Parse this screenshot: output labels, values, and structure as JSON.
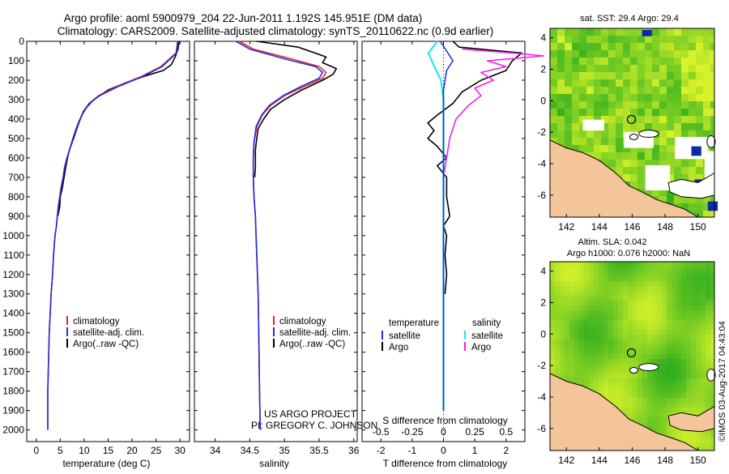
{
  "header": {
    "title_line1": "Argo profile: aoml 5900979_204 22-Jun-2011 1.192S 145.951E (DM data)",
    "title_line2": "Climatology: CARS2009. Satellite-adjusted climatology: synTS_20110622.nc (0.9d earlier)"
  },
  "colors": {
    "climatology": "#e8252a",
    "satellite": "#1f2ee0",
    "argo": "#000000",
    "salinity_satellite": "#22e8f0",
    "salinity_argo": "#f023e6",
    "land": "#f4c49b",
    "no_data": "#ffffff",
    "sst_low": "#2fae1e",
    "sst_high": "#d7f22a",
    "float_marker": "#0a2aa8"
  },
  "annotations": {
    "project": "US ARGO PROJECT",
    "pi": "PI: GREGORY C. JOHNSON",
    "sst_map_title": "sat. SST: 29.4  Argo: 29.4",
    "sla_line1": "Altim. SLA: 0.042",
    "sla_line2": "Argo h1000: 0.076  h2000: NaN",
    "timestamp": "©IMOS 03-Aug-2017 04:43:04"
  },
  "chart_data": [
    {
      "id": "temperature",
      "type": "line",
      "xlabel": "temperature (deg C)",
      "ylabel": "",
      "xlim": [
        -2,
        32
      ],
      "ylim": [
        2060,
        0
      ],
      "x_ticks": [
        0,
        5,
        10,
        15,
        20,
        25,
        30
      ],
      "y_ticks": [
        0,
        100,
        200,
        300,
        400,
        500,
        600,
        700,
        800,
        900,
        1000,
        1100,
        1200,
        1300,
        1400,
        1500,
        1600,
        1700,
        1800,
        1900,
        2000
      ],
      "legend": [
        "climatology",
        "satellite-adj. clim.",
        "Argo(..raw -QC)"
      ],
      "series": [
        {
          "name": "climatology",
          "color": "climatology",
          "x": [
            29.5,
            29.2,
            26,
            22,
            17,
            13,
            11,
            9.8,
            9.2,
            8.6,
            7.8,
            6.9,
            6.4,
            5.9,
            5.6,
            5.2,
            4.9,
            4.6,
            4.4,
            4.2,
            3.9,
            3.6,
            3.4,
            3.1,
            2.9,
            2.7,
            2.6,
            2.4,
            2.4
          ],
          "y": [
            0,
            60,
            130,
            180,
            230,
            280,
            320,
            360,
            400,
            440,
            500,
            560,
            600,
            650,
            700,
            750,
            800,
            850,
            900,
            950,
            1000,
            1100,
            1200,
            1300,
            1400,
            1500,
            1600,
            1800,
            2000
          ]
        },
        {
          "name": "satellite-adj. clim.",
          "color": "satellite",
          "x": [
            29.6,
            29.3,
            26.3,
            22.3,
            17.3,
            13.2,
            11.1,
            9.9,
            9.2,
            8.6,
            7.8,
            6.9,
            6.4,
            5.9,
            5.6,
            5.2,
            4.9,
            4.6,
            4.4,
            4.2,
            3.9,
            3.6,
            3.4,
            3.1,
            2.9,
            2.7,
            2.6,
            2.4,
            2.4
          ],
          "y": [
            0,
            60,
            130,
            180,
            230,
            280,
            320,
            360,
            400,
            440,
            500,
            560,
            600,
            650,
            700,
            750,
            800,
            850,
            900,
            950,
            1000,
            1100,
            1200,
            1300,
            1400,
            1500,
            1600,
            1800,
            2000
          ]
        },
        {
          "name": "Argo(..raw -QC)",
          "color": "argo",
          "x": [
            29.8,
            29.6,
            29,
            28.2,
            26.5,
            22.5,
            19,
            15,
            12,
            10.5,
            9.5,
            8.8,
            8.2,
            7.4,
            6.7,
            6.2,
            5.8,
            5.4,
            5.0,
            4.9,
            4.5
          ],
          "y": [
            0,
            40,
            80,
            120,
            150,
            180,
            210,
            250,
            300,
            340,
            380,
            420,
            460,
            520,
            580,
            640,
            700,
            760,
            800,
            850,
            900
          ]
        }
      ]
    },
    {
      "id": "salinity",
      "type": "line",
      "xlabel": "salinity",
      "ylabel": "",
      "xlim": [
        33.7,
        36.05
      ],
      "ylim": [
        2060,
        0
      ],
      "x_ticks": [
        34,
        34.5,
        35,
        35.5,
        36
      ],
      "legend": [
        "climatology",
        "satellite-adj. clim.",
        "Argo(..raw -QC)"
      ],
      "series": [
        {
          "name": "climatology",
          "color": "climatology",
          "x": [
            34.35,
            34.55,
            35.1,
            35.5,
            35.6,
            35.55,
            35.3,
            35.0,
            34.8,
            34.68,
            34.6,
            34.56,
            34.55,
            34.55,
            34.56,
            34.58,
            34.6,
            34.62,
            34.63,
            34.64,
            34.65
          ],
          "y": [
            0,
            40,
            90,
            130,
            160,
            190,
            230,
            280,
            330,
            380,
            440,
            520,
            600,
            700,
            800,
            900,
            1100,
            1300,
            1500,
            1800,
            2000
          ]
        },
        {
          "name": "satellite-adj. clim.",
          "color": "satellite",
          "x": [
            34.3,
            34.5,
            35.0,
            35.45,
            35.55,
            35.5,
            35.25,
            34.98,
            34.78,
            34.67,
            34.59,
            34.56,
            34.55,
            34.55,
            34.56,
            34.58,
            34.6,
            34.62,
            34.63,
            34.64,
            34.65
          ],
          "y": [
            0,
            40,
            90,
            130,
            160,
            190,
            230,
            280,
            330,
            380,
            440,
            520,
            600,
            700,
            800,
            900,
            1100,
            1300,
            1500,
            1800,
            2000
          ]
        },
        {
          "name": "Argo(..raw -QC)",
          "color": "argo",
          "x": [
            34.6,
            35.2,
            35.6,
            35.55,
            35.75,
            35.7,
            35.55,
            35.25,
            35.0,
            34.8,
            34.7,
            34.62,
            34.6,
            34.58,
            34.58,
            34.57
          ],
          "y": [
            0,
            30,
            80,
            110,
            140,
            170,
            200,
            250,
            300,
            350,
            400,
            450,
            500,
            560,
            650,
            700
          ]
        }
      ]
    },
    {
      "id": "difference",
      "type": "line",
      "xlabel": "T difference from climatology",
      "xlabel_top": "S difference from climatology",
      "xlim": [
        -2.6,
        2.6
      ],
      "ylim": [
        2060,
        0
      ],
      "x_ticks_T": [
        -2,
        -1,
        0,
        1,
        2
      ],
      "x_ticks_S": [
        -0.5,
        -0.25,
        0,
        0.25,
        0.5
      ],
      "legend_temperature_title": "temperature",
      "legend_salinity_title": "salinity",
      "legend": [
        "satellite",
        "Argo",
        "satellite",
        "Argo"
      ],
      "series": [
        {
          "name": "satellite",
          "group": "temperature",
          "color": "satellite",
          "x": [
            -0.1,
            0.1,
            0.3,
            0.1,
            0.05,
            0.0,
            0.0,
            0.0,
            0.0,
            0.0,
            0.0,
            0.0,
            0.0
          ],
          "y": [
            0,
            50,
            100,
            150,
            200,
            250,
            300,
            400,
            600,
            800,
            1000,
            1500,
            1900
          ]
        },
        {
          "name": "Argo",
          "group": "temperature",
          "color": "argo",
          "x": [
            0.3,
            0.5,
            2.5,
            2.2,
            2.0,
            1.2,
            0.6,
            0.3,
            -0.2,
            -0.5,
            -0.3,
            -0.5,
            -0.2,
            0.1,
            -0.2,
            0.0,
            0.1,
            0.1,
            0.2,
            0.0,
            0.1,
            0.05,
            0.1,
            0.05
          ],
          "y": [
            0,
            30,
            60,
            100,
            150,
            200,
            260,
            320,
            380,
            420,
            460,
            500,
            540,
            600,
            640,
            680,
            700,
            800,
            900,
            950,
            1000,
            1100,
            1200,
            1300
          ]
        },
        {
          "name": "satellite",
          "group": "salinity",
          "color": "salinity_satellite",
          "x": [
            -0.05,
            -0.12,
            -0.08,
            -0.02,
            0.0,
            0.0,
            0.0,
            0.0,
            0.0
          ],
          "y": [
            0,
            60,
            120,
            200,
            300,
            500,
            1000,
            1500,
            1900
          ]
        },
        {
          "name": "Argo",
          "group": "salinity",
          "color": "salinity_argo",
          "x": [
            0.15,
            0.55,
            0.8,
            0.35,
            0.5,
            0.3,
            0.4,
            0.25,
            0.3,
            0.2,
            0.1,
            0.05,
            0.0
          ],
          "y": [
            40,
            60,
            75,
            100,
            130,
            160,
            200,
            240,
            280,
            330,
            400,
            500,
            700
          ]
        }
      ]
    },
    {
      "id": "sst_map",
      "type": "heatmap",
      "title": "sat. SST: 29.4  Argo: 29.4",
      "xlim": [
        141,
        151
      ],
      "ylim": [
        -7.4,
        4.6
      ],
      "x_ticks": [
        142,
        144,
        146,
        148,
        150
      ],
      "y_ticks": [
        4,
        2,
        0,
        -2,
        -4,
        -6
      ],
      "float_position": {
        "lon": 145.951,
        "lat": -1.192
      }
    },
    {
      "id": "sla_map",
      "type": "heatmap",
      "title": "Altim. SLA: 0.042",
      "xlim": [
        141,
        151
      ],
      "ylim": [
        -7.4,
        4.6
      ],
      "x_ticks": [
        142,
        144,
        146,
        148,
        150
      ],
      "y_ticks": [
        4,
        2,
        0,
        -2,
        -4,
        -6
      ],
      "float_position": {
        "lon": 145.951,
        "lat": -1.192
      }
    }
  ]
}
